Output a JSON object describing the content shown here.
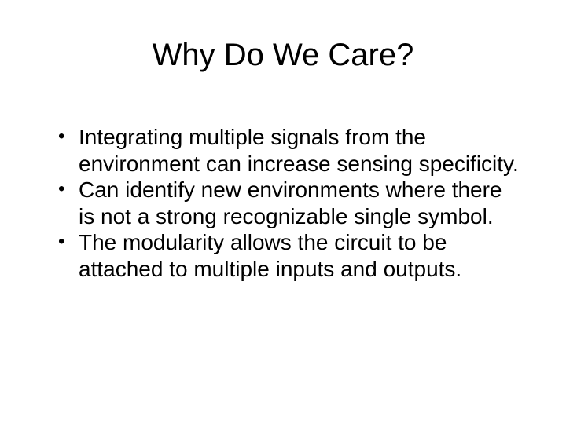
{
  "slide": {
    "background_color": "#ffffff",
    "text_color": "#000000",
    "font_family": "Arial",
    "title": {
      "text": "Why Do We Care?",
      "fontsize": 40,
      "weight": "normal",
      "align": "center"
    },
    "bullets": {
      "fontsize": 28,
      "line_height": 1.2,
      "marker": "•",
      "items": [
        "Integrating multiple signals from the environment can increase sensing specificity.",
        "Can identify new environments where there is not a strong recognizable single symbol.",
        "The modularity allows the circuit to be attached to multiple inputs and outputs."
      ]
    }
  }
}
